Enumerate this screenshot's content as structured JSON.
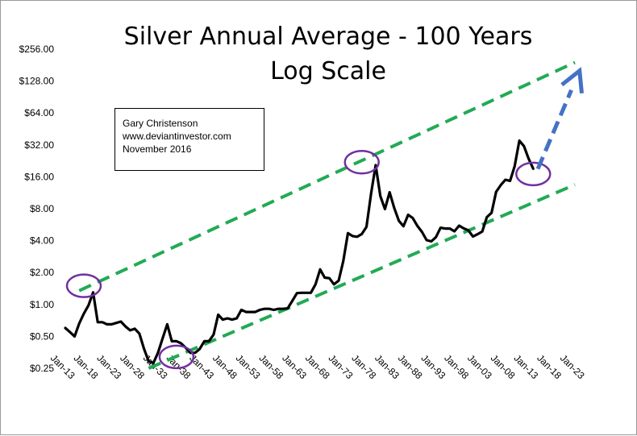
{
  "chart_data": {
    "type": "line",
    "title": [
      "Silver Annual Average  - 100 Years",
      "Log Scale"
    ],
    "xlabel": "",
    "ylabel": "",
    "y_scale": "log2",
    "ylim": [
      0.25,
      256
    ],
    "y_ticks": [
      "$256.00",
      "$128.00",
      "$64.00",
      "$32.00",
      "$16.00",
      "$8.00",
      "$4.00",
      "$2.00",
      "$1.00",
      "$0.50",
      "$0.25"
    ],
    "x_ticks": [
      "Jan-13",
      "Jan-18",
      "Jan-23",
      "Jan-28",
      "Jan-33",
      "Jan-38",
      "Jan-43",
      "Jan-48",
      "Jan-53",
      "Jan-58",
      "Jan-63",
      "Jan-68",
      "Jan-73",
      "Jan-78",
      "Jan-83",
      "Jan-88",
      "Jan-93",
      "Jan-98",
      "Jan-03",
      "Jan-08",
      "Jan-13",
      "Jan-18",
      "Jan-23"
    ],
    "xlim": [
      1913,
      2023
    ],
    "grid": false,
    "legend": "none",
    "series": [
      {
        "color": "#000000",
        "x": [
          1913,
          1914,
          1915,
          1916,
          1917,
          1918,
          1919,
          1920,
          1921,
          1922,
          1923,
          1924,
          1925,
          1926,
          1927,
          1928,
          1929,
          1930,
          1931,
          1932,
          1933,
          1934,
          1935,
          1936,
          1937,
          1938,
          1939,
          1940,
          1941,
          1942,
          1943,
          1944,
          1945,
          1946,
          1947,
          1948,
          1949,
          1950,
          1951,
          1952,
          1953,
          1954,
          1955,
          1956,
          1957,
          1958,
          1959,
          1960,
          1961,
          1962,
          1963,
          1964,
          1965,
          1966,
          1967,
          1968,
          1969,
          1970,
          1971,
          1972,
          1973,
          1974,
          1975,
          1976,
          1977,
          1978,
          1979,
          1980,
          1981,
          1982,
          1983,
          1984,
          1985,
          1986,
          1987,
          1988,
          1989,
          1990,
          1991,
          1992,
          1993,
          1994,
          1995,
          1996,
          1997,
          1998,
          1999,
          2000,
          2001,
          2002,
          2003,
          2004,
          2005,
          2006,
          2007,
          2008,
          2009,
          2010,
          2011,
          2012,
          2013,
          2014
        ],
        "y": [
          0.6,
          0.55,
          0.5,
          0.66,
          0.82,
          0.98,
          1.3,
          0.68,
          0.68,
          0.65,
          0.65,
          0.67,
          0.69,
          0.62,
          0.57,
          0.59,
          0.53,
          0.38,
          0.29,
          0.28,
          0.35,
          0.48,
          0.65,
          0.45,
          0.45,
          0.43,
          0.39,
          0.35,
          0.35,
          0.38,
          0.45,
          0.45,
          0.52,
          0.8,
          0.72,
          0.74,
          0.72,
          0.74,
          0.89,
          0.85,
          0.85,
          0.85,
          0.89,
          0.91,
          0.91,
          0.89,
          0.91,
          0.91,
          0.92,
          1.08,
          1.28,
          1.29,
          1.29,
          1.29,
          1.55,
          2.14,
          1.79,
          1.77,
          1.55,
          1.68,
          2.56,
          4.71,
          4.42,
          4.35,
          4.62,
          5.4,
          11.09,
          20.63,
          10.52,
          7.95,
          11.44,
          8.14,
          6.14,
          5.47,
          7.01,
          6.53,
          5.5,
          4.82,
          4.04,
          3.94,
          4.31,
          5.29,
          5.2,
          5.2,
          4.9,
          5.54,
          5.22,
          5.0,
          4.37,
          4.6,
          4.88,
          6.67,
          7.32,
          11.55,
          13.38,
          14.99,
          14.67,
          20.19,
          35.12,
          31.15,
          23.79,
          19.08
        ]
      }
    ],
    "channel_lines": [
      {
        "color": "#22aa55",
        "x": [
          1916,
          2023
        ],
        "y": [
          1.35,
          192
        ]
      },
      {
        "color": "#22aa55",
        "x": [
          1931,
          2023
        ],
        "y": [
          0.25,
          13.5
        ]
      }
    ],
    "projection_arrow": {
      "color": "#4472c4",
      "x": [
        2015,
        2024
      ],
      "y": [
        19,
        160
      ]
    },
    "highlight_circles": {
      "color": "#7030a0",
      "points": [
        [
          1917,
          1.5
        ],
        [
          1937,
          0.32
        ],
        [
          1977,
          22
        ],
        [
          2014,
          17
        ]
      ]
    },
    "annotation_box": [
      "Gary Christenson",
      "www.deviantinvestor.com",
      "November 2016"
    ]
  }
}
